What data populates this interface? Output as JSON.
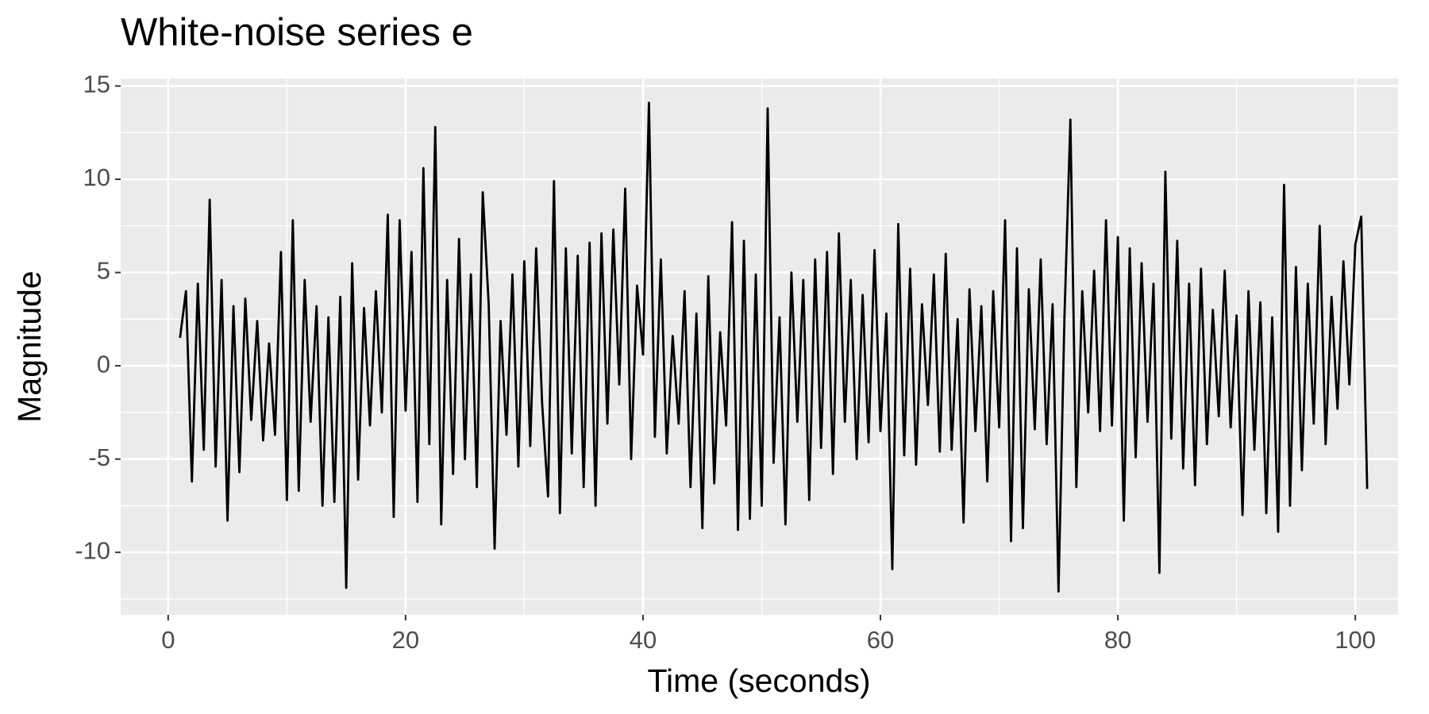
{
  "chart_data": {
    "type": "line",
    "title": "White-noise series e",
    "x_label": "Time (seconds)",
    "y_label": "Magnitude",
    "color": "#000000",
    "grid": true,
    "xlim": [
      -4,
      103.6
    ],
    "ylim": [
      -13.35,
      15.4
    ],
    "xticks": [
      0,
      20,
      40,
      60,
      80,
      100
    ],
    "yticks": [
      -10,
      -5,
      0,
      5,
      10,
      15
    ],
    "xminor": [
      10,
      30,
      50,
      70,
      90
    ],
    "yminor": [
      -12.5,
      -7.5,
      -2.5,
      2.5,
      7.5,
      12.5
    ],
    "x": [
      1,
      1.5,
      2,
      2.5,
      3,
      3.5,
      4,
      4.5,
      5,
      5.5,
      6,
      6.5,
      7,
      7.5,
      8,
      8.5,
      9,
      9.5,
      10,
      10.5,
      11,
      11.5,
      12,
      12.5,
      13,
      13.5,
      14,
      14.5,
      15,
      15.5,
      16,
      16.5,
      17,
      17.5,
      18,
      18.5,
      19,
      19.5,
      20,
      20.5,
      21,
      21.5,
      22,
      22.5,
      23,
      23.5,
      24,
      24.5,
      25,
      25.5,
      26,
      26.5,
      27,
      27.5,
      28,
      28.5,
      29,
      29.5,
      30,
      30.5,
      31,
      31.5,
      32,
      32.5,
      33,
      33.5,
      34,
      34.5,
      35,
      35.5,
      36,
      36.5,
      37,
      37.5,
      38,
      38.5,
      39,
      39.5,
      40,
      40.5,
      41,
      41.5,
      42,
      42.5,
      43,
      43.5,
      44,
      44.5,
      45,
      45.5,
      46,
      46.5,
      47,
      47.5,
      48,
      48.5,
      49,
      49.5,
      50,
      50.5,
      51,
      51.5,
      52,
      52.5,
      53,
      53.5,
      54,
      54.5,
      55,
      55.5,
      56,
      56.5,
      57,
      57.5,
      58,
      58.5,
      59,
      59.5,
      60,
      60.5,
      61,
      61.5,
      62,
      62.5,
      63,
      63.5,
      64,
      64.5,
      65,
      65.5,
      66,
      66.5,
      67,
      67.5,
      68,
      68.5,
      69,
      69.5,
      70,
      70.5,
      71,
      71.5,
      72,
      72.5,
      73,
      73.5,
      74,
      74.5,
      75,
      75.5,
      76,
      76.5,
      77,
      77.5,
      78,
      78.5,
      79,
      79.5,
      80,
      80.5,
      81,
      81.5,
      82,
      82.5,
      83,
      83.5,
      84,
      84.5,
      85,
      85.5,
      86,
      86.5,
      87,
      87.5,
      88,
      88.5,
      89,
      89.5,
      90,
      90.5,
      91,
      91.5,
      92,
      92.5,
      93,
      93.5,
      94,
      94.5,
      95,
      95.5,
      96,
      96.5,
      97,
      97.5,
      98,
      98.5,
      99,
      99.5,
      100,
      100.5,
      101
    ],
    "values": [
      1.5,
      4.0,
      -6.2,
      4.4,
      -4.5,
      8.9,
      -5.4,
      4.6,
      -8.3,
      3.2,
      -5.7,
      3.6,
      -2.9,
      2.4,
      -4.0,
      1.2,
      -3.7,
      6.1,
      -7.2,
      7.8,
      -6.7,
      4.6,
      -3.0,
      3.2,
      -7.5,
      2.6,
      -7.3,
      3.7,
      -11.9,
      5.5,
      -6.1,
      3.1,
      -3.2,
      4.0,
      -2.5,
      8.1,
      -8.1,
      7.8,
      -2.4,
      6.1,
      -7.3,
      10.6,
      -4.2,
      12.8,
      -8.5,
      4.6,
      -5.8,
      6.8,
      -5.0,
      4.9,
      -6.5,
      9.3,
      3.3,
      -9.8,
      2.4,
      -3.7,
      4.9,
      -5.4,
      5.6,
      -4.3,
      6.3,
      -2.0,
      -7.0,
      9.9,
      -7.9,
      6.3,
      -4.7,
      5.9,
      -6.5,
      6.6,
      -7.5,
      7.1,
      -3.1,
      7.3,
      -1.0,
      9.5,
      -5.0,
      4.3,
      0.6,
      14.1,
      -3.8,
      5.7,
      -4.7,
      1.6,
      -3.1,
      4.0,
      -6.5,
      2.8,
      -8.7,
      4.8,
      -6.3,
      1.8,
      -3.2,
      7.7,
      -8.8,
      6.7,
      -8.2,
      4.9,
      -7.5,
      13.8,
      -5.2,
      2.6,
      -8.5,
      5.0,
      -3.0,
      4.6,
      -7.2,
      5.7,
      -4.4,
      6.1,
      -5.8,
      7.1,
      -3.0,
      4.6,
      -5.0,
      3.8,
      -4.1,
      6.2,
      -3.5,
      2.8,
      -10.9,
      7.6,
      -4.8,
      5.2,
      -5.3,
      3.3,
      -2.1,
      4.9,
      -4.6,
      6.0,
      -4.5,
      2.5,
      -8.4,
      4.1,
      -3.5,
      3.2,
      -6.2,
      4.0,
      -3.3,
      7.8,
      -9.4,
      6.3,
      -8.7,
      4.1,
      -3.4,
      5.7,
      -4.2,
      3.3,
      -12.1,
      2.6,
      13.2,
      -6.5,
      4.0,
      -2.5,
      5.1,
      -3.5,
      7.8,
      -3.2,
      6.9,
      -8.3,
      6.3,
      -4.9,
      5.5,
      -3.0,
      4.4,
      -11.1,
      10.4,
      -3.9,
      6.7,
      -5.5,
      4.4,
      -6.4,
      5.2,
      -4.2,
      3.0,
      -2.7,
      5.1,
      -3.3,
      2.7,
      -8.0,
      4.0,
      -4.5,
      3.4,
      -7.9,
      2.6,
      -8.9,
      9.7,
      -7.5,
      5.3,
      -5.6,
      4.4,
      -3.1,
      7.5,
      -4.2,
      3.7,
      -2.3,
      5.6,
      -1.0,
      6.5,
      8.0,
      -6.6
    ]
  }
}
